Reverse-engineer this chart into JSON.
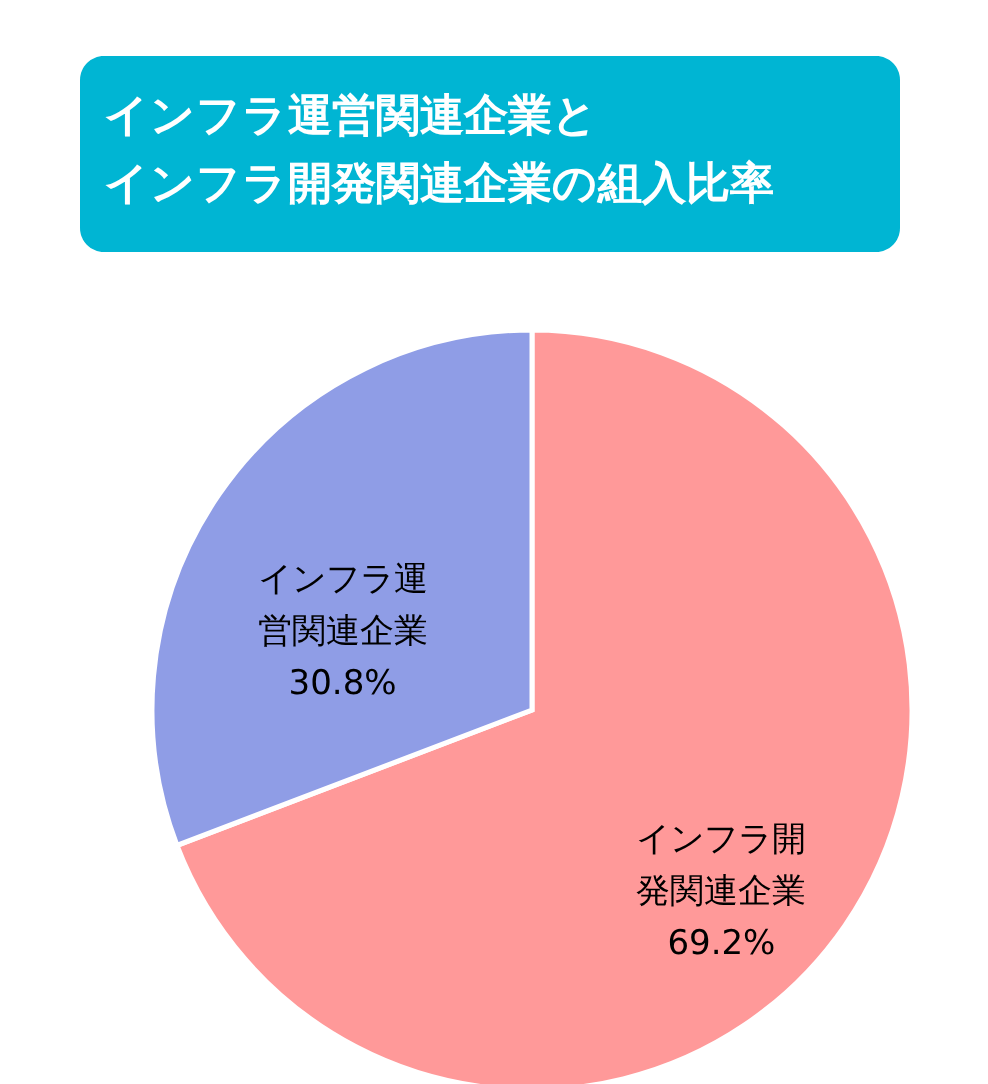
{
  "chart_data": {
    "type": "pie",
    "title": "インフラ運営関連企業とインフラ開発関連企業の組入比率",
    "categories": [
      "インフラ開発関連企業",
      "インフラ運営関連企業"
    ],
    "values": [
      69.2,
      30.8
    ],
    "colors": [
      "#ff9999",
      "#8f9de6"
    ],
    "value_labels": [
      "69.2%",
      "30.8%"
    ]
  }
}
